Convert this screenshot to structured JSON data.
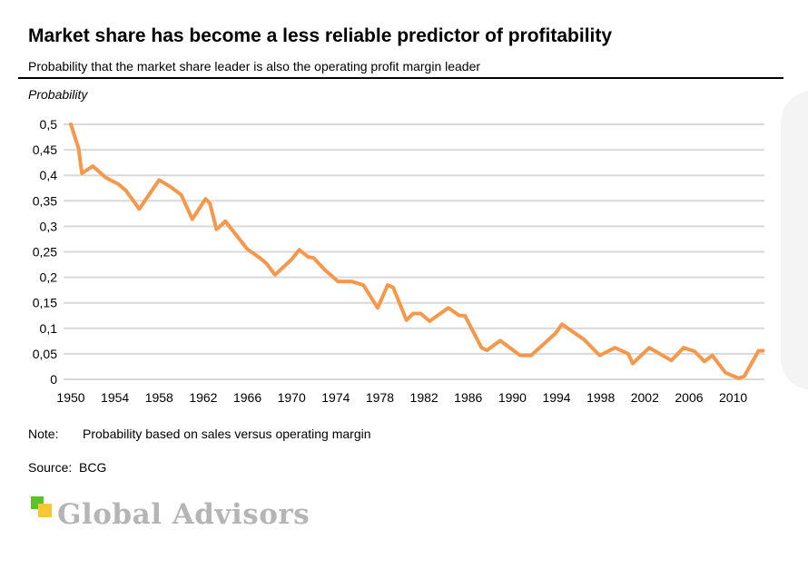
{
  "header": {
    "title": "Market share has become a less reliable predictor of profitability",
    "subtitle": "Probability that the market share leader is also the operating profit margin leader"
  },
  "footer": {
    "note_label": "Note:",
    "note_text": "Probability based on sales versus operating margin",
    "source_label": "Source:",
    "source_text": "BCG"
  },
  "logo": {
    "text": "Global Advisors",
    "colors": [
      "#5cc227",
      "#f9c735"
    ]
  },
  "chart_data": {
    "type": "line",
    "title": "Market share has become a less reliable predictor of profitability",
    "ylabel": "Probability",
    "xlim": [
      1950,
      2013
    ],
    "ylim": [
      0,
      0.5
    ],
    "grid": true,
    "line_color": "#f7974a",
    "x_ticks": [
      "1950",
      "1954",
      "1958",
      "1962",
      "1966",
      "1970",
      "1974",
      "1978",
      "1982",
      "1986",
      "1990",
      "1994",
      "1998",
      "2002",
      "2006",
      "2010"
    ],
    "y_ticks": [
      "0",
      "0,05",
      "0,1",
      "0,15",
      "0,2",
      "0,25",
      "0,3",
      "0,35",
      "0,4",
      "0,45",
      "0,5"
    ],
    "x": [
      1950,
      1950.7,
      1951,
      1952,
      1953.2,
      1954.3,
      1955,
      1956.2,
      1958,
      1959,
      1960,
      1961,
      1962.2,
      1962.6,
      1963.2,
      1964,
      1966,
      1967,
      1967.7,
      1968.5,
      1970,
      1970.7,
      1971.5,
      1972,
      1973,
      1974.2,
      1975.4,
      1976.5,
      1977.8,
      1978.7,
      1979.2,
      1980.4,
      1981,
      1981.7,
      1982.5,
      1984.2,
      1985.2,
      1985.7,
      1987.2,
      1987.7,
      1988.9,
      1990.7,
      1991.7,
      1993.9,
      1994.5,
      1996.5,
      1997.9,
      1999.3,
      2000.5,
      2000.9,
      2002.4,
      2004.4,
      2005.5,
      2006.5,
      2007.4,
      2008.1,
      2009.3,
      2010.5,
      2011,
      2012.3,
      2012.7
    ],
    "values": [
      0.5,
      0.453,
      0.404,
      0.418,
      0.395,
      0.383,
      0.37,
      0.334,
      0.391,
      0.378,
      0.362,
      0.314,
      0.354,
      0.345,
      0.294,
      0.31,
      0.255,
      0.24,
      0.228,
      0.205,
      0.235,
      0.254,
      0.24,
      0.238,
      0.215,
      0.192,
      0.192,
      0.185,
      0.14,
      0.185,
      0.18,
      0.116,
      0.129,
      0.129,
      0.114,
      0.14,
      0.125,
      0.125,
      0.062,
      0.057,
      0.076,
      0.047,
      0.047,
      0.09,
      0.108,
      0.078,
      0.047,
      0.062,
      0.05,
      0.031,
      0.062,
      0.037,
      0.062,
      0.055,
      0.035,
      0.047,
      0.013,
      0.002,
      0.006,
      0.056,
      0.056
    ]
  }
}
